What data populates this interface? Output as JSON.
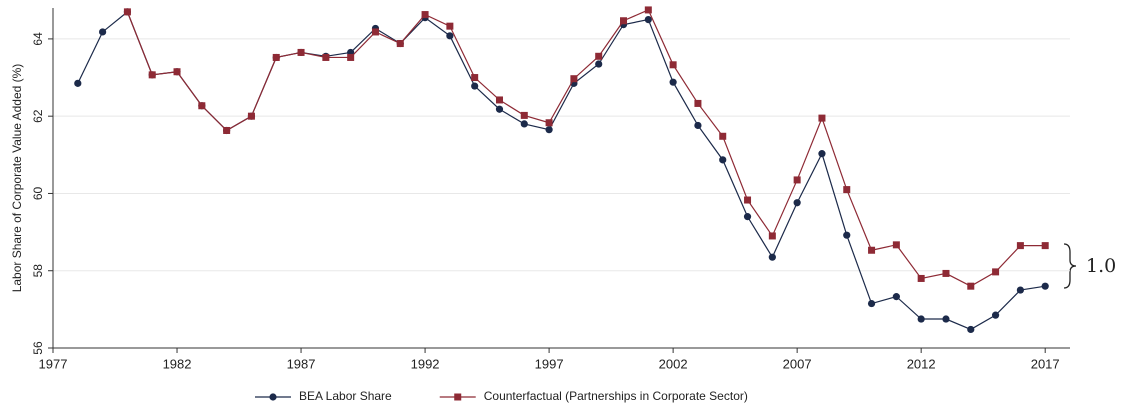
{
  "chart_data": {
    "type": "line",
    "y_label": "Labor Share of Corporate Value Added (%)",
    "x": [
      1978,
      1979,
      1980,
      1981,
      1982,
      1983,
      1984,
      1985,
      1986,
      1987,
      1988,
      1989,
      1990,
      1991,
      1992,
      1993,
      1994,
      1995,
      1996,
      1997,
      1998,
      1999,
      2000,
      2001,
      2002,
      2003,
      2004,
      2005,
      2006,
      2007,
      2008,
      2009,
      2010,
      2011,
      2012,
      2013,
      2014,
      2015,
      2016,
      2017
    ],
    "series": [
      {
        "name": "BEA Labor Share",
        "color": "#1c2a4a",
        "marker": "circle",
        "values": [
          62.85,
          64.18,
          64.7,
          63.07,
          63.15,
          62.27,
          61.63,
          62.0,
          63.52,
          63.65,
          63.55,
          63.65,
          64.27,
          63.88,
          64.55,
          64.08,
          62.78,
          62.18,
          61.8,
          61.65,
          62.85,
          63.35,
          64.37,
          64.5,
          62.88,
          61.76,
          60.87,
          59.4,
          58.35,
          59.76,
          61.03,
          58.92,
          57.15,
          57.33,
          56.75,
          56.75,
          56.48,
          56.85,
          57.5,
          57.6
        ]
      },
      {
        "name": "Counterfactual (Partnerships in Corporate Sector)",
        "color": "#8e2a35",
        "marker": "square",
        "values": [
          null,
          null,
          64.7,
          63.07,
          63.15,
          62.27,
          61.63,
          62.0,
          63.52,
          63.65,
          63.52,
          63.52,
          64.18,
          63.88,
          64.63,
          64.33,
          63.0,
          62.42,
          62.02,
          61.83,
          62.97,
          63.55,
          64.47,
          64.75,
          63.33,
          62.33,
          61.48,
          59.83,
          58.9,
          60.35,
          61.95,
          60.1,
          58.53,
          58.67,
          57.8,
          57.93,
          57.6,
          57.97,
          58.65,
          58.65
        ]
      }
    ],
    "xlim": [
      1977,
      2018
    ],
    "xticks": [
      1977,
      1982,
      1987,
      1992,
      1997,
      2002,
      2007,
      2012,
      2017
    ],
    "ylim": [
      56,
      64.8
    ],
    "yticks": [
      56,
      58,
      60,
      62,
      64
    ],
    "grid": true,
    "legend": "bottom",
    "annotation": "1.0"
  }
}
